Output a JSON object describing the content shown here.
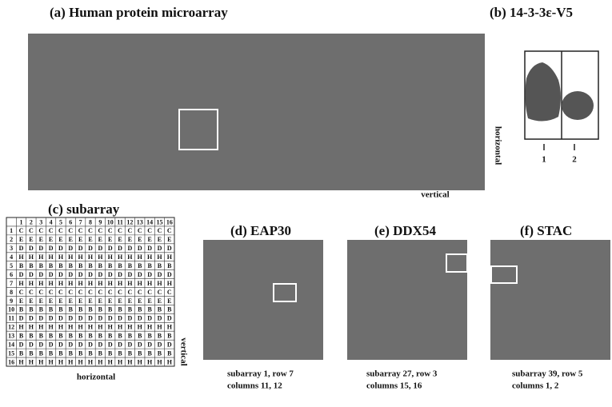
{
  "panel_a": {
    "title": "(a) Human protein microarray",
    "axis_right": "horizontal",
    "axis_bottom": "vertical"
  },
  "panel_b": {
    "title": "(b) 14-3-3ε-V5",
    "lanes": [
      "1",
      "2"
    ]
  },
  "panel_c": {
    "title": "(c) subarray",
    "axis_right": "vertical",
    "axis_bottom": "horizontal",
    "columns": [
      "1",
      "2",
      "3",
      "4",
      "5",
      "6",
      "7",
      "8",
      "9",
      "10",
      "11",
      "12",
      "13",
      "14",
      "15",
      "16"
    ],
    "rows": [
      "1",
      "2",
      "3",
      "4",
      "5",
      "6",
      "7",
      "8",
      "9",
      "10",
      "11",
      "12",
      "13",
      "14",
      "15",
      "16"
    ],
    "cells": [
      [
        "C",
        "C",
        "C",
        "C",
        "C",
        "C",
        "C",
        "C",
        "C",
        "C",
        "C",
        "C",
        "C",
        "C",
        "C",
        "C"
      ],
      [
        "E",
        "E",
        "E",
        "E",
        "E",
        "E",
        "E",
        "E",
        "E",
        "E",
        "E",
        "E",
        "E",
        "E",
        "E",
        "E"
      ],
      [
        "D",
        "D",
        "D",
        "D",
        "D",
        "D",
        "D",
        "D",
        "D",
        "D",
        "D",
        "D",
        "D",
        "D",
        "D",
        "D"
      ],
      [
        "H",
        "H",
        "H",
        "H",
        "H",
        "H",
        "H",
        "H",
        "H",
        "H",
        "H",
        "H",
        "H",
        "H",
        "H",
        "H"
      ],
      [
        "B",
        "B",
        "B",
        "B",
        "B",
        "B",
        "B",
        "B",
        "B",
        "B",
        "B",
        "B",
        "B",
        "B",
        "B",
        "B"
      ],
      [
        "D",
        "D",
        "D",
        "D",
        "D",
        "D",
        "D",
        "D",
        "D",
        "D",
        "D",
        "D",
        "D",
        "D",
        "D",
        "D"
      ],
      [
        "H",
        "H",
        "H",
        "H",
        "H",
        "H",
        "H",
        "H",
        "H",
        "H",
        "H",
        "H",
        "H",
        "H",
        "H",
        "H"
      ],
      [
        "C",
        "C",
        "C",
        "C",
        "C",
        "C",
        "C",
        "C",
        "C",
        "C",
        "C",
        "C",
        "C",
        "C",
        "C",
        "C"
      ],
      [
        "E",
        "E",
        "E",
        "E",
        "E",
        "E",
        "E",
        "E",
        "E",
        "E",
        "E",
        "E",
        "E",
        "E",
        "E",
        "E"
      ],
      [
        "B",
        "B",
        "B",
        "B",
        "B",
        "B",
        "B",
        "B",
        "B",
        "B",
        "B",
        "B",
        "B",
        "B",
        "B",
        "B"
      ],
      [
        "D",
        "D",
        "D",
        "D",
        "D",
        "D",
        "D",
        "D",
        "D",
        "D",
        "D",
        "D",
        "D",
        "D",
        "D",
        "D"
      ],
      [
        "H",
        "H",
        "H",
        "H",
        "H",
        "H",
        "H",
        "H",
        "H",
        "H",
        "H",
        "H",
        "H",
        "H",
        "H",
        "H"
      ],
      [
        "B",
        "B",
        "B",
        "B",
        "B",
        "B",
        "B",
        "B",
        "B",
        "B",
        "B",
        "B",
        "B",
        "B",
        "B",
        "B"
      ],
      [
        "D",
        "D",
        "D",
        "D",
        "D",
        "D",
        "D",
        "D",
        "D",
        "D",
        "D",
        "D",
        "D",
        "D",
        "D",
        "D"
      ],
      [
        "B",
        "B",
        "B",
        "B",
        "B",
        "B",
        "B",
        "B",
        "B",
        "B",
        "B",
        "B",
        "B",
        "B",
        "B",
        "B"
      ],
      [
        "H",
        "H",
        "H",
        "H",
        "H",
        "H",
        "H",
        "H",
        "H",
        "H",
        "H",
        "H",
        "H",
        "H",
        "H",
        "H"
      ]
    ]
  },
  "panel_d": {
    "title": "(d) EAP30",
    "caption": [
      "subarray 1, row 7",
      "columns 11, 12"
    ]
  },
  "panel_e": {
    "title": "(e) DDX54",
    "caption": [
      "subarray 27, row 3",
      "columns 15, 16"
    ]
  },
  "panel_f": {
    "title": "(f) STAC",
    "caption": [
      "subarray 39, row 5",
      "columns 1, 2"
    ]
  }
}
